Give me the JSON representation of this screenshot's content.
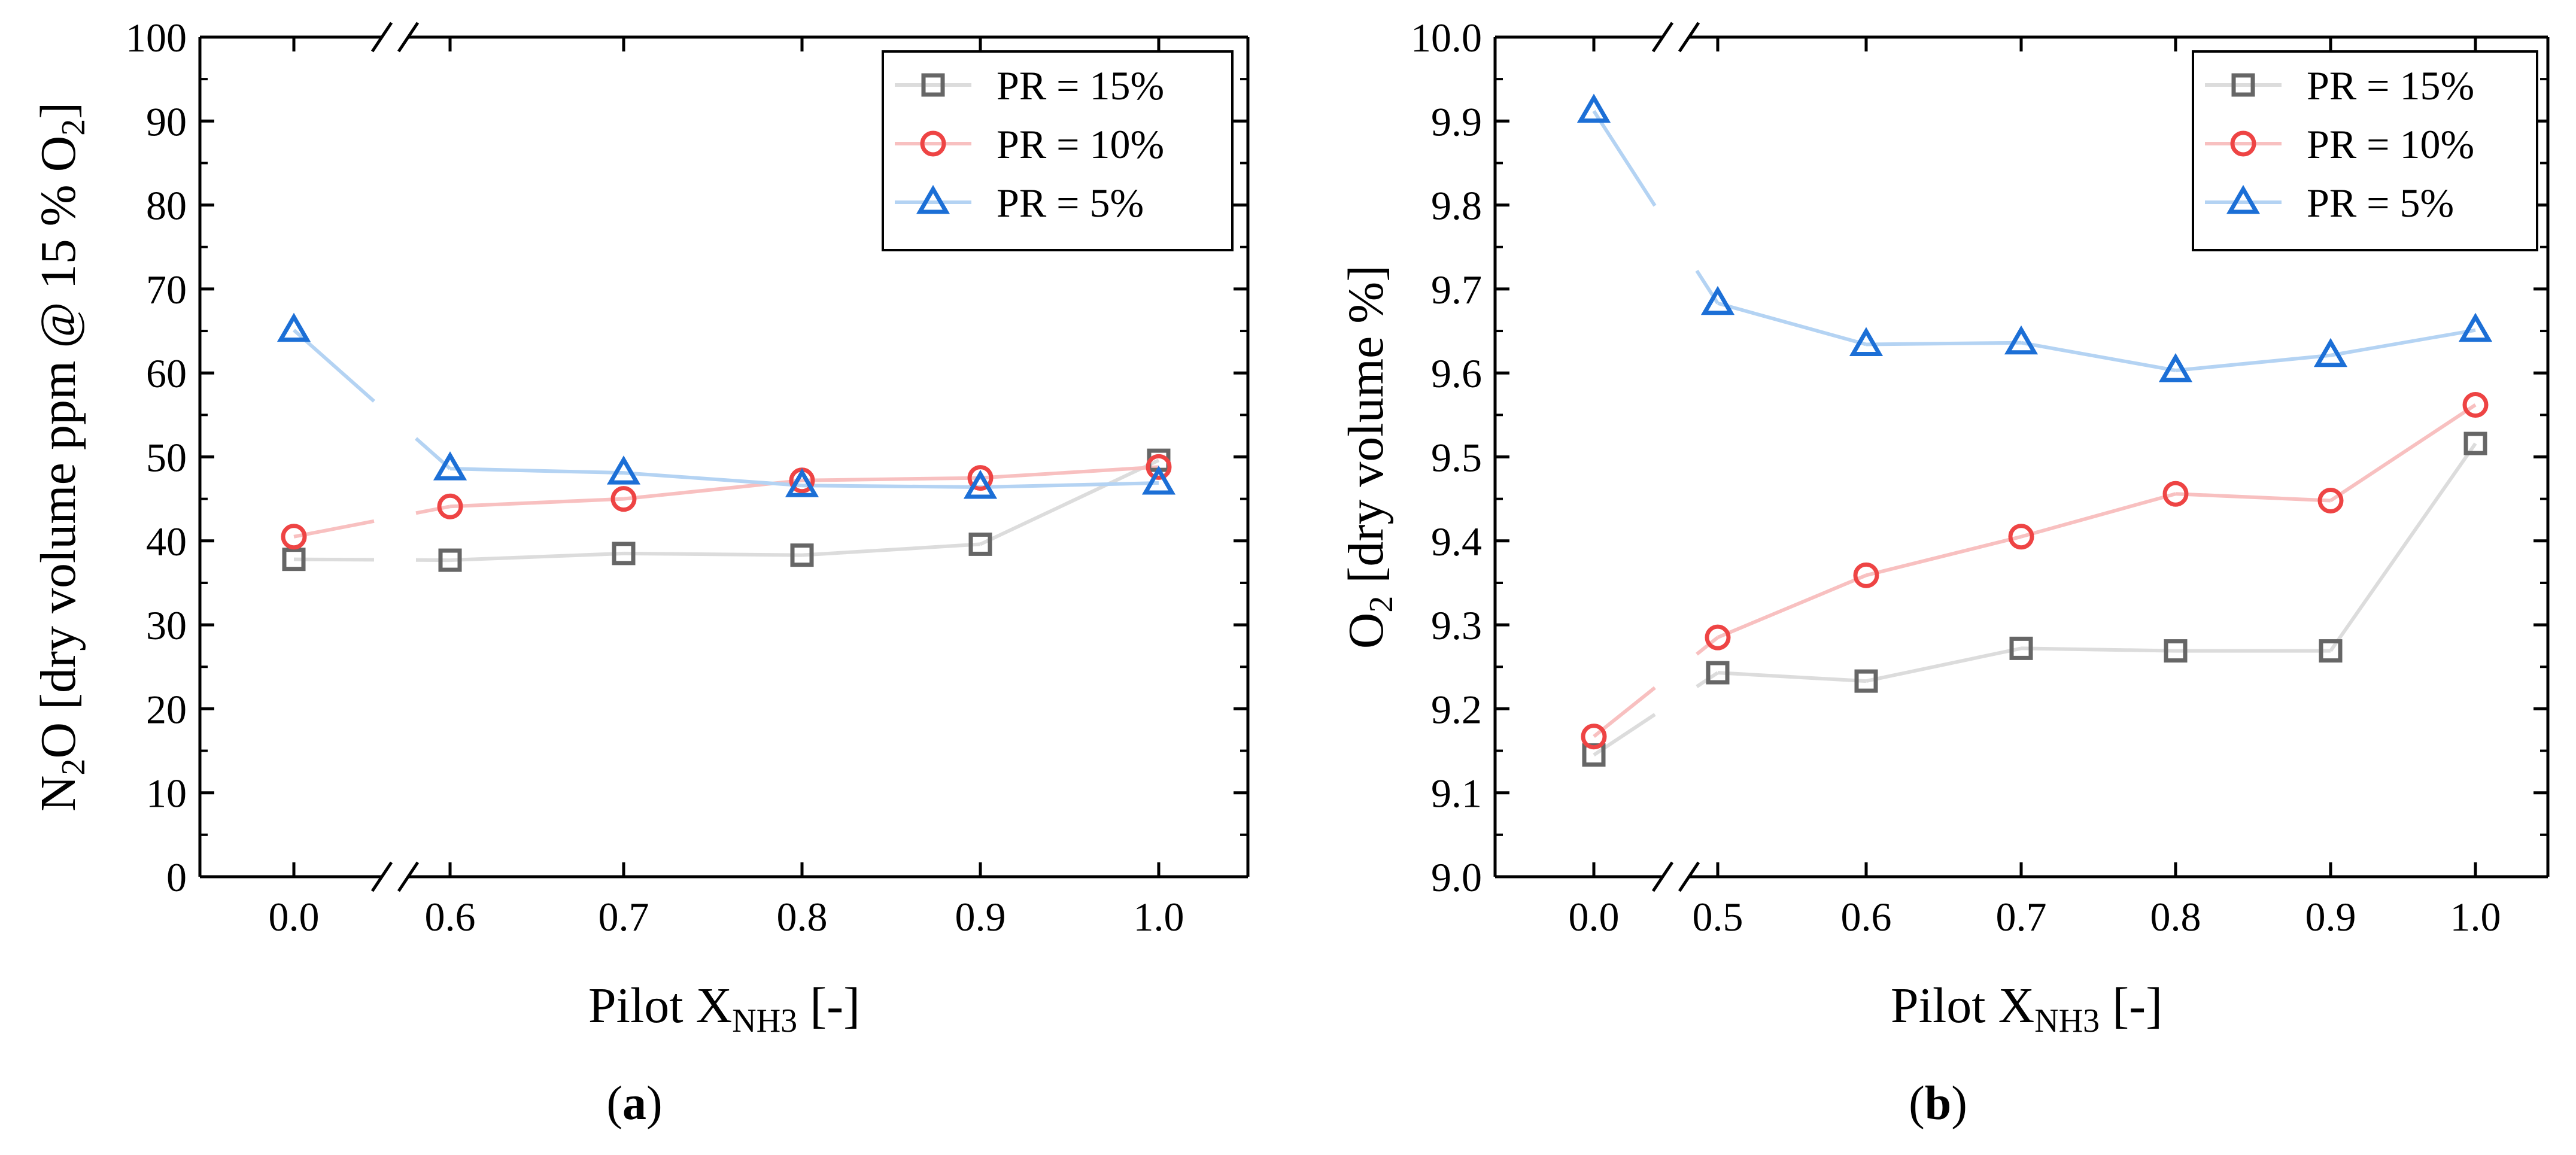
{
  "chart_data": [
    {
      "panel_label": "(a)",
      "panel_letter": "a",
      "type": "line",
      "ylabel_prefix": "N",
      "ylabel_sub1": "2",
      "ylabel_mid": "O [dry volume ppm @ 15 % O",
      "ylabel_sub2": "2",
      "ylabel_suffix": "]",
      "xlabel_prefix": "Pilot X",
      "xlabel_sub": "NH3",
      "xlabel_suffix": " [-]",
      "categories": [
        "0.0",
        "0.6",
        "0.7",
        "0.8",
        "0.9",
        "1.0"
      ],
      "ylim": [
        0,
        100
      ],
      "yticks": [
        0,
        10,
        20,
        30,
        40,
        50,
        60,
        70,
        80,
        90,
        100
      ],
      "ytick_labels": [
        "0",
        "10",
        "20",
        "30",
        "40",
        "50",
        "60",
        "70",
        "80",
        "90",
        "100"
      ],
      "x_axis_break_after": "0.0",
      "series": [
        {
          "name": "PR = 15%",
          "marker": "square",
          "color": "#666666",
          "line_color": "#dcdcdc",
          "values": [
            37.8,
            37.7,
            38.5,
            38.3,
            39.6,
            49.6
          ]
        },
        {
          "name": "PR = 10%",
          "marker": "circle",
          "color": "#ee4444",
          "line_color": "#f8c0c0",
          "values": [
            40.5,
            44.1,
            45.0,
            47.2,
            47.5,
            48.8
          ]
        },
        {
          "name": "PR = 5%",
          "marker": "triangle",
          "color": "#1c6fd6",
          "line_color": "#b4d3f3",
          "values": [
            65.1,
            48.6,
            48.1,
            46.6,
            46.4,
            46.9
          ]
        }
      ],
      "legend_position": "top-right"
    },
    {
      "panel_label": "(b)",
      "panel_letter": "b",
      "type": "line",
      "ylabel_prefix": "O",
      "ylabel_sub1": "2",
      "ylabel_mid": " [dry volume %]",
      "ylabel_sub2": "",
      "ylabel_suffix": "",
      "xlabel_prefix": "Pilot X",
      "xlabel_sub": "NH3",
      "xlabel_suffix": " [-]",
      "categories": [
        "0.0",
        "0.5",
        "0.6",
        "0.7",
        "0.8",
        "0.9",
        "1.0"
      ],
      "ylim": [
        9.0,
        10.0
      ],
      "yticks": [
        9.0,
        9.1,
        9.2,
        9.3,
        9.4,
        9.5,
        9.6,
        9.7,
        9.8,
        9.9,
        10.0
      ],
      "ytick_labels": [
        "9.0",
        "9.1",
        "9.2",
        "9.3",
        "9.4",
        "9.5",
        "9.6",
        "9.7",
        "9.8",
        "9.9",
        "10.0"
      ],
      "x_axis_break_after": "0.0",
      "series": [
        {
          "name": "PR = 15%",
          "marker": "square",
          "color": "#666666",
          "line_color": "#dcdcdc",
          "values": [
            9.145,
            9.243,
            9.233,
            9.272,
            9.269,
            9.269,
            9.516
          ]
        },
        {
          "name": "PR = 10%",
          "marker": "circle",
          "color": "#ee4444",
          "line_color": "#f8c0c0",
          "values": [
            9.167,
            9.285,
            9.359,
            9.405,
            9.456,
            9.448,
            9.562
          ]
        },
        {
          "name": "PR = 5%",
          "marker": "triangle",
          "color": "#1c6fd6",
          "line_color": "#b4d3f3",
          "values": [
            9.912,
            9.683,
            9.634,
            9.636,
            9.603,
            9.621,
            9.651
          ]
        }
      ],
      "legend_position": "top-right"
    }
  ]
}
